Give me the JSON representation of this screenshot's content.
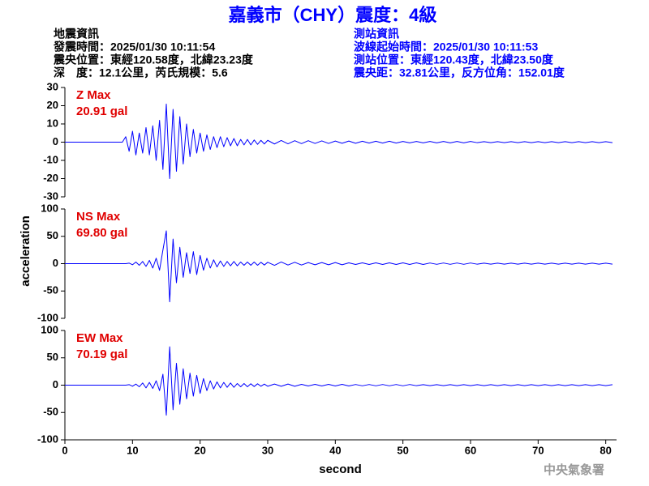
{
  "header": {
    "title": "嘉義市（CHY）震度：4級",
    "left": [
      "地震資訊",
      "發震時間：2025/01/30 10:11:54",
      "震央位置：東經120.58度，北緯23.23度",
      "深　度：12.1公里，芮氏規模：5.6"
    ],
    "right": [
      "測站資訊",
      "波線起始時間：2025/01/30 10:11:53",
      "測站位置：東經120.43度，北緯23.50度",
      "震央距：32.81公里，反方位角：152.01度"
    ],
    "footer": "中央氣象署"
  },
  "chart_data": [
    {
      "type": "line",
      "annotations": [
        "Z Max",
        "20.91 gal"
      ],
      "x": [
        0,
        8.5,
        9,
        9.5,
        10,
        10.5,
        11,
        11.5,
        12,
        12.5,
        13,
        13.5,
        14,
        14.5,
        15,
        15.5,
        16,
        16.5,
        17,
        17.5,
        18,
        18.5,
        19,
        19.5,
        20,
        20.5,
        21,
        21.5,
        22,
        22.5,
        23,
        23.5,
        24,
        24.5,
        25,
        25.5,
        26,
        26.5,
        27,
        27.5,
        28,
        28.5,
        29,
        29.5,
        30,
        31,
        32,
        33,
        34,
        35,
        36,
        37,
        38,
        39,
        40,
        41,
        42,
        43,
        44,
        45,
        46,
        47,
        48,
        49,
        50,
        51,
        52,
        53,
        54,
        55,
        56,
        57,
        58,
        59,
        60,
        61,
        62,
        63,
        64,
        65,
        66,
        67,
        68,
        69,
        70,
        71,
        72,
        73,
        74,
        75,
        76,
        77,
        78,
        79,
        80,
        81
      ],
      "series": [
        {
          "name": "Z",
          "color": "#0000ff",
          "values": [
            0,
            0,
            3,
            -5,
            6,
            -7,
            5,
            -6,
            8,
            -7,
            9,
            -10,
            12,
            -15,
            20.91,
            -20,
            18,
            -16,
            14,
            -12,
            10,
            -8,
            7,
            -6,
            5,
            -5,
            4,
            -4,
            3,
            -3,
            3,
            -2.5,
            2.5,
            -2,
            2,
            -2,
            1.5,
            -1.5,
            1.5,
            -1.5,
            1.2,
            -1.2,
            1,
            -1,
            1,
            -1,
            0.9,
            -0.9,
            0.8,
            -0.8,
            0.8,
            -0.7,
            0.7,
            -0.7,
            0.6,
            -0.6,
            0.6,
            -0.6,
            0.5,
            -0.5,
            0.5,
            -0.5,
            0.5,
            -0.5,
            0.4,
            -0.4,
            0.4,
            -0.4,
            0.4,
            -0.4,
            0.4,
            -0.4,
            0.4,
            -0.4,
            0.4,
            -0.3,
            0.3,
            -0.3,
            0.3,
            -0.3,
            0.3,
            -0.3,
            0.3,
            -0.3,
            0.3,
            -0.3,
            0.3,
            -0.3,
            0.3,
            -0.3,
            0.3,
            -0.3,
            0.3,
            -0.3,
            0.3,
            -0.3
          ]
        }
      ],
      "xlim": [
        0,
        81
      ],
      "ylim": [
        -30,
        30
      ],
      "yticks": [
        -30,
        -20,
        -10,
        0,
        10,
        20,
        30
      ]
    },
    {
      "type": "line",
      "annotations": [
        "NS Max",
        "69.80 gal"
      ],
      "ylabel": "acceleration",
      "x": [
        0,
        8.5,
        9,
        9.5,
        10,
        10.5,
        11,
        11.5,
        12,
        12.5,
        13,
        13.5,
        14,
        14.5,
        15,
        15.5,
        16,
        16.5,
        17,
        17.5,
        18,
        18.5,
        19,
        19.5,
        20,
        20.5,
        21,
        21.5,
        22,
        22.5,
        23,
        23.5,
        24,
        24.5,
        25,
        25.5,
        26,
        26.5,
        27,
        27.5,
        28,
        28.5,
        29,
        29.5,
        30,
        31,
        32,
        33,
        34,
        35,
        36,
        37,
        38,
        39,
        40,
        41,
        42,
        43,
        44,
        45,
        46,
        47,
        48,
        49,
        50,
        51,
        52,
        53,
        54,
        55,
        56,
        57,
        58,
        59,
        60,
        61,
        62,
        63,
        64,
        65,
        66,
        67,
        68,
        69,
        70,
        71,
        72,
        73,
        74,
        75,
        76,
        77,
        78,
        79,
        80,
        81
      ],
      "series": [
        {
          "name": "NS",
          "color": "#0000ff",
          "values": [
            0,
            0,
            0,
            1,
            -2,
            3,
            -3,
            4,
            -5,
            6,
            -8,
            10,
            -12,
            25,
            60,
            -69.8,
            45,
            -35,
            30,
            -25,
            20,
            -18,
            22,
            -20,
            15,
            -12,
            10,
            -8,
            7,
            -6,
            5,
            -5,
            4,
            -4,
            4,
            -4,
            3,
            -3,
            3,
            -3,
            3,
            -3,
            2.5,
            -2.5,
            2.5,
            -3,
            3,
            -2.5,
            2.5,
            -2.5,
            2,
            -2,
            2,
            -2,
            2,
            -2,
            1.5,
            -1.5,
            1.5,
            -1.5,
            1.5,
            -1.5,
            1.5,
            -1.5,
            1.5,
            -1.5,
            1.5,
            -1.5,
            1.2,
            -1.2,
            1.2,
            -1.2,
            1.2,
            -1.2,
            1.2,
            -1,
            1,
            -1,
            1,
            -1,
            1,
            -1,
            1,
            -1,
            1,
            -1,
            1,
            -1,
            1,
            -1,
            1,
            -1,
            1,
            -1,
            1,
            -1
          ]
        }
      ],
      "xlim": [
        0,
        81
      ],
      "ylim": [
        -100,
        100
      ],
      "yticks": [
        -100,
        -50,
        0,
        50,
        100
      ]
    },
    {
      "type": "line",
      "annotations": [
        "EW Max",
        "70.19 gal"
      ],
      "xlabel": "second",
      "x": [
        0,
        8.5,
        9,
        9.5,
        10,
        10.5,
        11,
        11.5,
        12,
        12.5,
        13,
        13.5,
        14,
        14.5,
        15,
        15.5,
        16,
        16.5,
        17,
        17.5,
        18,
        18.5,
        19,
        19.5,
        20,
        20.5,
        21,
        21.5,
        22,
        22.5,
        23,
        23.5,
        24,
        24.5,
        25,
        25.5,
        26,
        26.5,
        27,
        27.5,
        28,
        28.5,
        29,
        29.5,
        30,
        31,
        32,
        33,
        34,
        35,
        36,
        37,
        38,
        39,
        40,
        41,
        42,
        43,
        44,
        45,
        46,
        47,
        48,
        49,
        50,
        51,
        52,
        53,
        54,
        55,
        56,
        57,
        58,
        59,
        60,
        61,
        62,
        63,
        64,
        65,
        66,
        67,
        68,
        69,
        70,
        71,
        72,
        73,
        74,
        75,
        76,
        77,
        78,
        79,
        80,
        81
      ],
      "series": [
        {
          "name": "EW",
          "color": "#0000ff",
          "values": [
            0,
            0,
            0,
            1,
            -2,
            2,
            -3,
            4,
            -5,
            5,
            -6,
            8,
            -10,
            20,
            -55,
            70.19,
            -45,
            40,
            -35,
            30,
            -25,
            22,
            -20,
            18,
            -15,
            12,
            -10,
            8,
            -7,
            6,
            -5,
            5,
            -4,
            4,
            -4,
            3,
            -3,
            3,
            -3,
            2.5,
            -2.5,
            2.5,
            -2,
            2,
            -2,
            2,
            -2,
            2,
            -2,
            1.5,
            -1.5,
            1.5,
            -1.5,
            1.5,
            -1.5,
            1.5,
            -1.5,
            1.2,
            -1.2,
            1.2,
            -1.2,
            1.2,
            -1.2,
            1.2,
            -1.2,
            1.2,
            -1,
            1,
            -1,
            1,
            -1,
            1,
            -1,
            1,
            -1,
            1,
            -1,
            1,
            -1,
            1,
            -1,
            1,
            -1,
            1,
            -1,
            1,
            -1,
            1,
            -1,
            1,
            -1,
            1,
            -1,
            1,
            -1,
            1
          ]
        }
      ],
      "xlim": [
        0,
        81
      ],
      "ylim": [
        -100,
        100
      ],
      "yticks": [
        -100,
        -50,
        0,
        50,
        100
      ],
      "xticks": [
        0,
        10,
        20,
        30,
        40,
        50,
        60,
        70,
        80
      ]
    }
  ]
}
